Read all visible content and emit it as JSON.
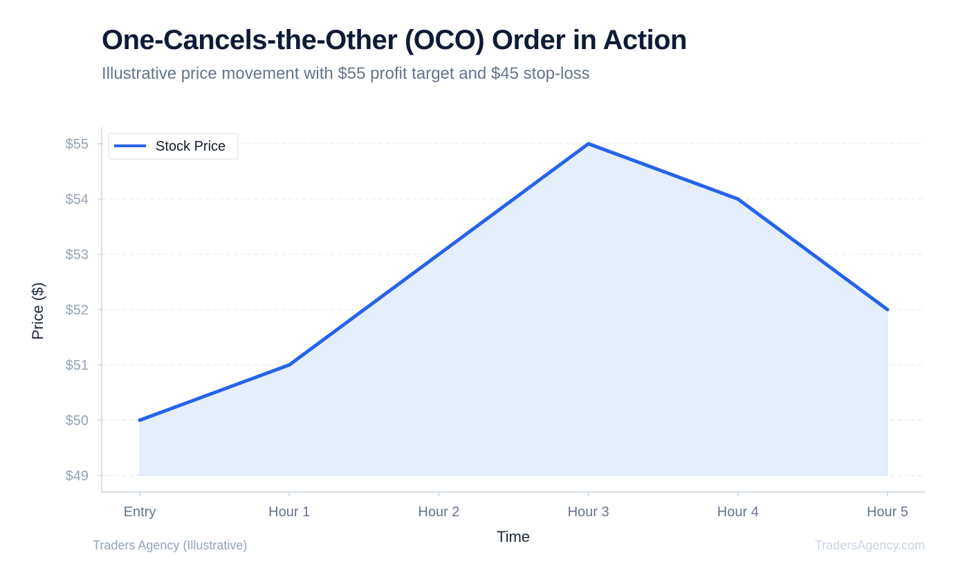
{
  "title": "One-Cancels-the-Other (OCO) Order in Action",
  "subtitle": "Illustrative price movement with $55 profit target and $45 stop-loss",
  "footer": {
    "left": "Traders Agency (Illustrative)",
    "right": "TradersAgency.com"
  },
  "colors": {
    "line": "#2563eb",
    "fill": "#e5eefb",
    "axis": "#cbd5e1",
    "grid": "#e2e8f0",
    "tick_text": "#94a3b8",
    "x_tick_text": "#64748b",
    "axis_title": "#1e293b"
  },
  "chart_data": {
    "type": "area",
    "xlabel": "Time",
    "ylabel": "Price ($)",
    "categories": [
      "Entry",
      "Hour 1",
      "Hour 2",
      "Hour 3",
      "Hour 4",
      "Hour 5"
    ],
    "series": [
      {
        "name": "Stock Price",
        "values": [
          50,
          51,
          53,
          55,
          54,
          52
        ]
      }
    ],
    "yticks": [
      49,
      50,
      51,
      52,
      53,
      54,
      55
    ],
    "ytick_labels": [
      "$49",
      "$50",
      "$51",
      "$52",
      "$53",
      "$54",
      "$55"
    ],
    "ylim": [
      48.7,
      55.3
    ],
    "fill_baseline": 49,
    "grid": true,
    "legend": "top-left"
  }
}
